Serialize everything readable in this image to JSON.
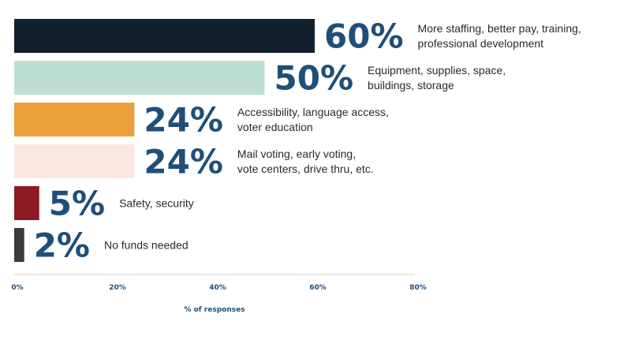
{
  "chart_data": {
    "type": "bar",
    "orientation": "horizontal",
    "xlabel": "% of responses",
    "xlim": [
      0,
      80
    ],
    "x_ticks": [
      "0%",
      "20%",
      "40%",
      "60%",
      "80%"
    ],
    "grid": false,
    "bars": [
      {
        "value": 60,
        "value_label": "60%",
        "category_lines": [
          "More staffing, better pay, training,",
          "professional development"
        ],
        "color": "#12202f"
      },
      {
        "value": 50,
        "value_label": "50%",
        "category_lines": [
          "Equipment, supplies, space,",
          "buildings, storage"
        ],
        "color": "#bee0d2"
      },
      {
        "value": 24,
        "value_label": "24%",
        "category_lines": [
          "Accessibility, language access,",
          "voter education"
        ],
        "color": "#eaa13c"
      },
      {
        "value": 24,
        "value_label": "24%",
        "category_lines": [
          "Mail voting, early voting,",
          "vote centers, drive thru, etc."
        ],
        "color": "#fbe6e1"
      },
      {
        "value": 5,
        "value_label": "5%",
        "category_lines": [
          "Safety, security"
        ],
        "color": "#8b1a22"
      },
      {
        "value": 2,
        "value_label": "2%",
        "category_lines": [
          "No funds needed"
        ],
        "color": "#3b3b3b"
      }
    ]
  }
}
